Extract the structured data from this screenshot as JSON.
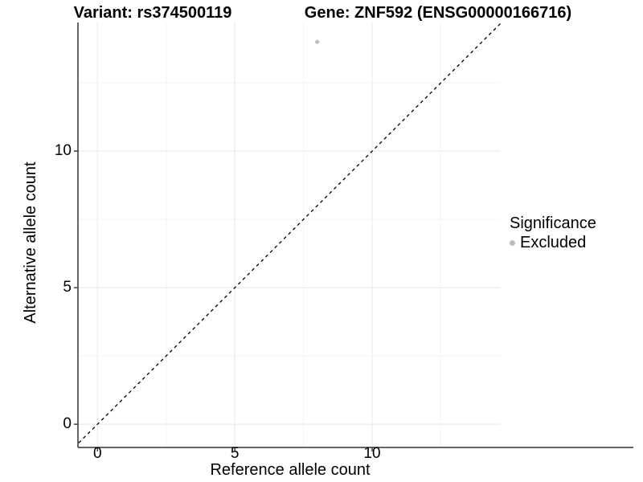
{
  "titles": {
    "variant": "Variant: rs374500119",
    "gene": "Gene: ZNF592 (ENSG00000166716)"
  },
  "legend": {
    "title": "Significance",
    "position": "right",
    "items": [
      {
        "label": "Excluded",
        "color": "#bdbdbd",
        "marker": "circle"
      }
    ]
  },
  "colors": {
    "background": "#ffffff",
    "axis_line": "#333333",
    "tick_mark": "#333333",
    "text": "#000000",
    "grid_major": "#e8e8e8",
    "grid_minor": "#f4f4f4",
    "point": "#bdbdbd",
    "identity_line": "#000000"
  },
  "chart_data": {
    "type": "scatter",
    "title": "Variant: rs374500119   Gene: ZNF592 (ENSG00000166716)",
    "xlabel": "Reference allele count",
    "ylabel": "Alternative allele count",
    "xlim": [
      -0.71,
      14.74
    ],
    "ylim": [
      -0.85,
      14.71
    ],
    "x_ticks": [
      0,
      5,
      10
    ],
    "y_ticks": [
      0,
      5,
      10
    ],
    "x_minor_ticks": [
      2.5,
      7.5,
      12.5
    ],
    "y_minor_ticks": [
      2.5,
      7.5,
      12.5
    ],
    "grid": true,
    "legend_position": "right",
    "series": [
      {
        "name": "Excluded",
        "color": "#bdbdbd",
        "points": [
          {
            "x": 8,
            "y": 14
          }
        ]
      }
    ],
    "reference_line": {
      "type": "identity",
      "equation": "y = x",
      "style": "dashed",
      "color": "#000000"
    }
  }
}
